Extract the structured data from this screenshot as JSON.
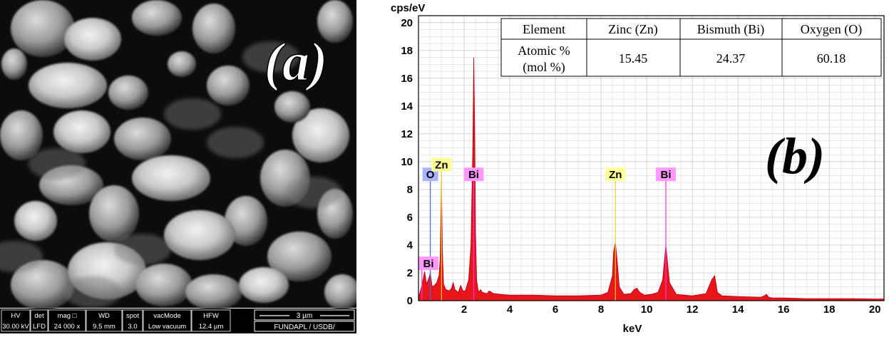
{
  "panel_a": {
    "label": "(a)",
    "databar": [
      {
        "head": "HV",
        "value": "30.00 kV"
      },
      {
        "head": "det",
        "value": "LFD"
      },
      {
        "head": "mag □",
        "value": "24 000 x"
      },
      {
        "head": "WD",
        "value": "9.5 mm"
      },
      {
        "head": "spot",
        "value": "3.0"
      },
      {
        "head": "vacMode",
        "value": "Low vacuum"
      },
      {
        "head": "HFW",
        "value": "12.4 µm"
      }
    ],
    "scale_bar_label": "3 µm",
    "facility": "FUNDAPL / USDB/"
  },
  "panel_b": {
    "label": "(b)"
  },
  "composition_table": {
    "headers": [
      "Element",
      "Zinc (Zn)",
      "Bismuth (Bi)",
      "Oxygen (O)"
    ],
    "row_label_line1": "Atomic %",
    "row_label_line2": "(mol %)",
    "values": [
      "15.45",
      "24.37",
      "60.18"
    ]
  },
  "colors": {
    "spectrum_fill": "#e8151b",
    "grid": "#cfcfcf",
    "zn_marker": "#f0d020",
    "bi_marker": "#ff33dd",
    "o_marker": "#4466ff",
    "label_bg_zn": "#ffff99",
    "label_bg_bi": "#ff99ff",
    "label_bg_o": "#aab4ff"
  },
  "chart_data": {
    "type": "area",
    "title": "",
    "ylabel": "cps/eV",
    "xlabel": "keV",
    "xlim": [
      0,
      20.4
    ],
    "ylim": [
      0,
      20.5
    ],
    "xticks": [
      2,
      4,
      6,
      8,
      10,
      12,
      14,
      16,
      18,
      20
    ],
    "yticks": [
      0,
      2,
      4,
      6,
      8,
      10,
      12,
      14,
      16,
      18,
      20
    ],
    "grid": true,
    "series": [
      {
        "x": [
          0.0,
          0.1,
          0.2,
          0.27,
          0.35,
          0.45,
          0.52,
          0.6,
          0.7,
          0.8,
          0.9,
          0.95,
          1.01,
          1.05,
          1.1,
          1.2,
          1.35,
          1.45,
          1.52,
          1.6,
          1.75,
          1.85,
          1.95,
          2.05,
          2.2,
          2.3,
          2.38,
          2.42,
          2.46,
          2.5,
          2.55,
          2.6,
          2.65,
          2.72,
          2.8,
          3.0,
          3.1,
          3.3,
          3.6,
          4.0,
          5.0,
          6.0,
          7.0,
          8.0,
          8.3,
          8.5,
          8.55,
          8.63,
          8.7,
          8.8,
          9.0,
          9.3,
          9.45,
          9.57,
          9.7,
          9.9,
          10.2,
          10.5,
          10.7,
          10.84,
          11.0,
          11.3,
          12.0,
          12.6,
          12.85,
          12.98,
          13.02,
          13.1,
          13.3,
          14.0,
          15.0,
          15.15,
          15.25,
          15.35,
          15.5,
          16.0,
          17.0,
          18.0,
          19.0,
          20.0,
          20.4
        ],
        "y": [
          0.2,
          0.8,
          1.5,
          2.1,
          1.2,
          1.6,
          2.0,
          1.0,
          1.1,
          1.3,
          1.8,
          3.0,
          8.7,
          3.5,
          1.2,
          0.8,
          0.7,
          0.9,
          1.3,
          0.8,
          0.6,
          1.1,
          0.7,
          0.7,
          1.5,
          4.0,
          11.0,
          17.5,
          13.0,
          5.0,
          1.5,
          0.9,
          0.6,
          0.8,
          0.6,
          0.5,
          0.7,
          0.5,
          0.45,
          0.4,
          0.4,
          0.35,
          0.35,
          0.4,
          0.6,
          1.8,
          3.5,
          4.2,
          3.0,
          1.0,
          0.45,
          0.5,
          0.8,
          0.9,
          0.6,
          0.4,
          0.45,
          0.6,
          1.5,
          4.0,
          1.3,
          0.45,
          0.35,
          0.5,
          1.5,
          1.8,
          1.4,
          0.6,
          0.35,
          0.3,
          0.25,
          0.35,
          0.45,
          0.25,
          0.2,
          0.2,
          0.15,
          0.15,
          0.15,
          0.12,
          0.12
        ]
      }
    ],
    "markers": [
      {
        "label": "O",
        "x": 0.52,
        "height": 8.6,
        "element": "o"
      },
      {
        "label": "Zn",
        "x": 1.01,
        "height": 9.3,
        "element": "zn"
      },
      {
        "label": "Bi",
        "x": 2.42,
        "height": 8.6,
        "element": "bi"
      },
      {
        "label": "Bi",
        "x": 0.15,
        "height": 2.2,
        "element": "bi"
      },
      {
        "label": "Zn",
        "x": 8.63,
        "height": 8.6,
        "element": "zn"
      },
      {
        "label": "Bi",
        "x": 10.84,
        "height": 8.6,
        "element": "bi"
      }
    ]
  }
}
